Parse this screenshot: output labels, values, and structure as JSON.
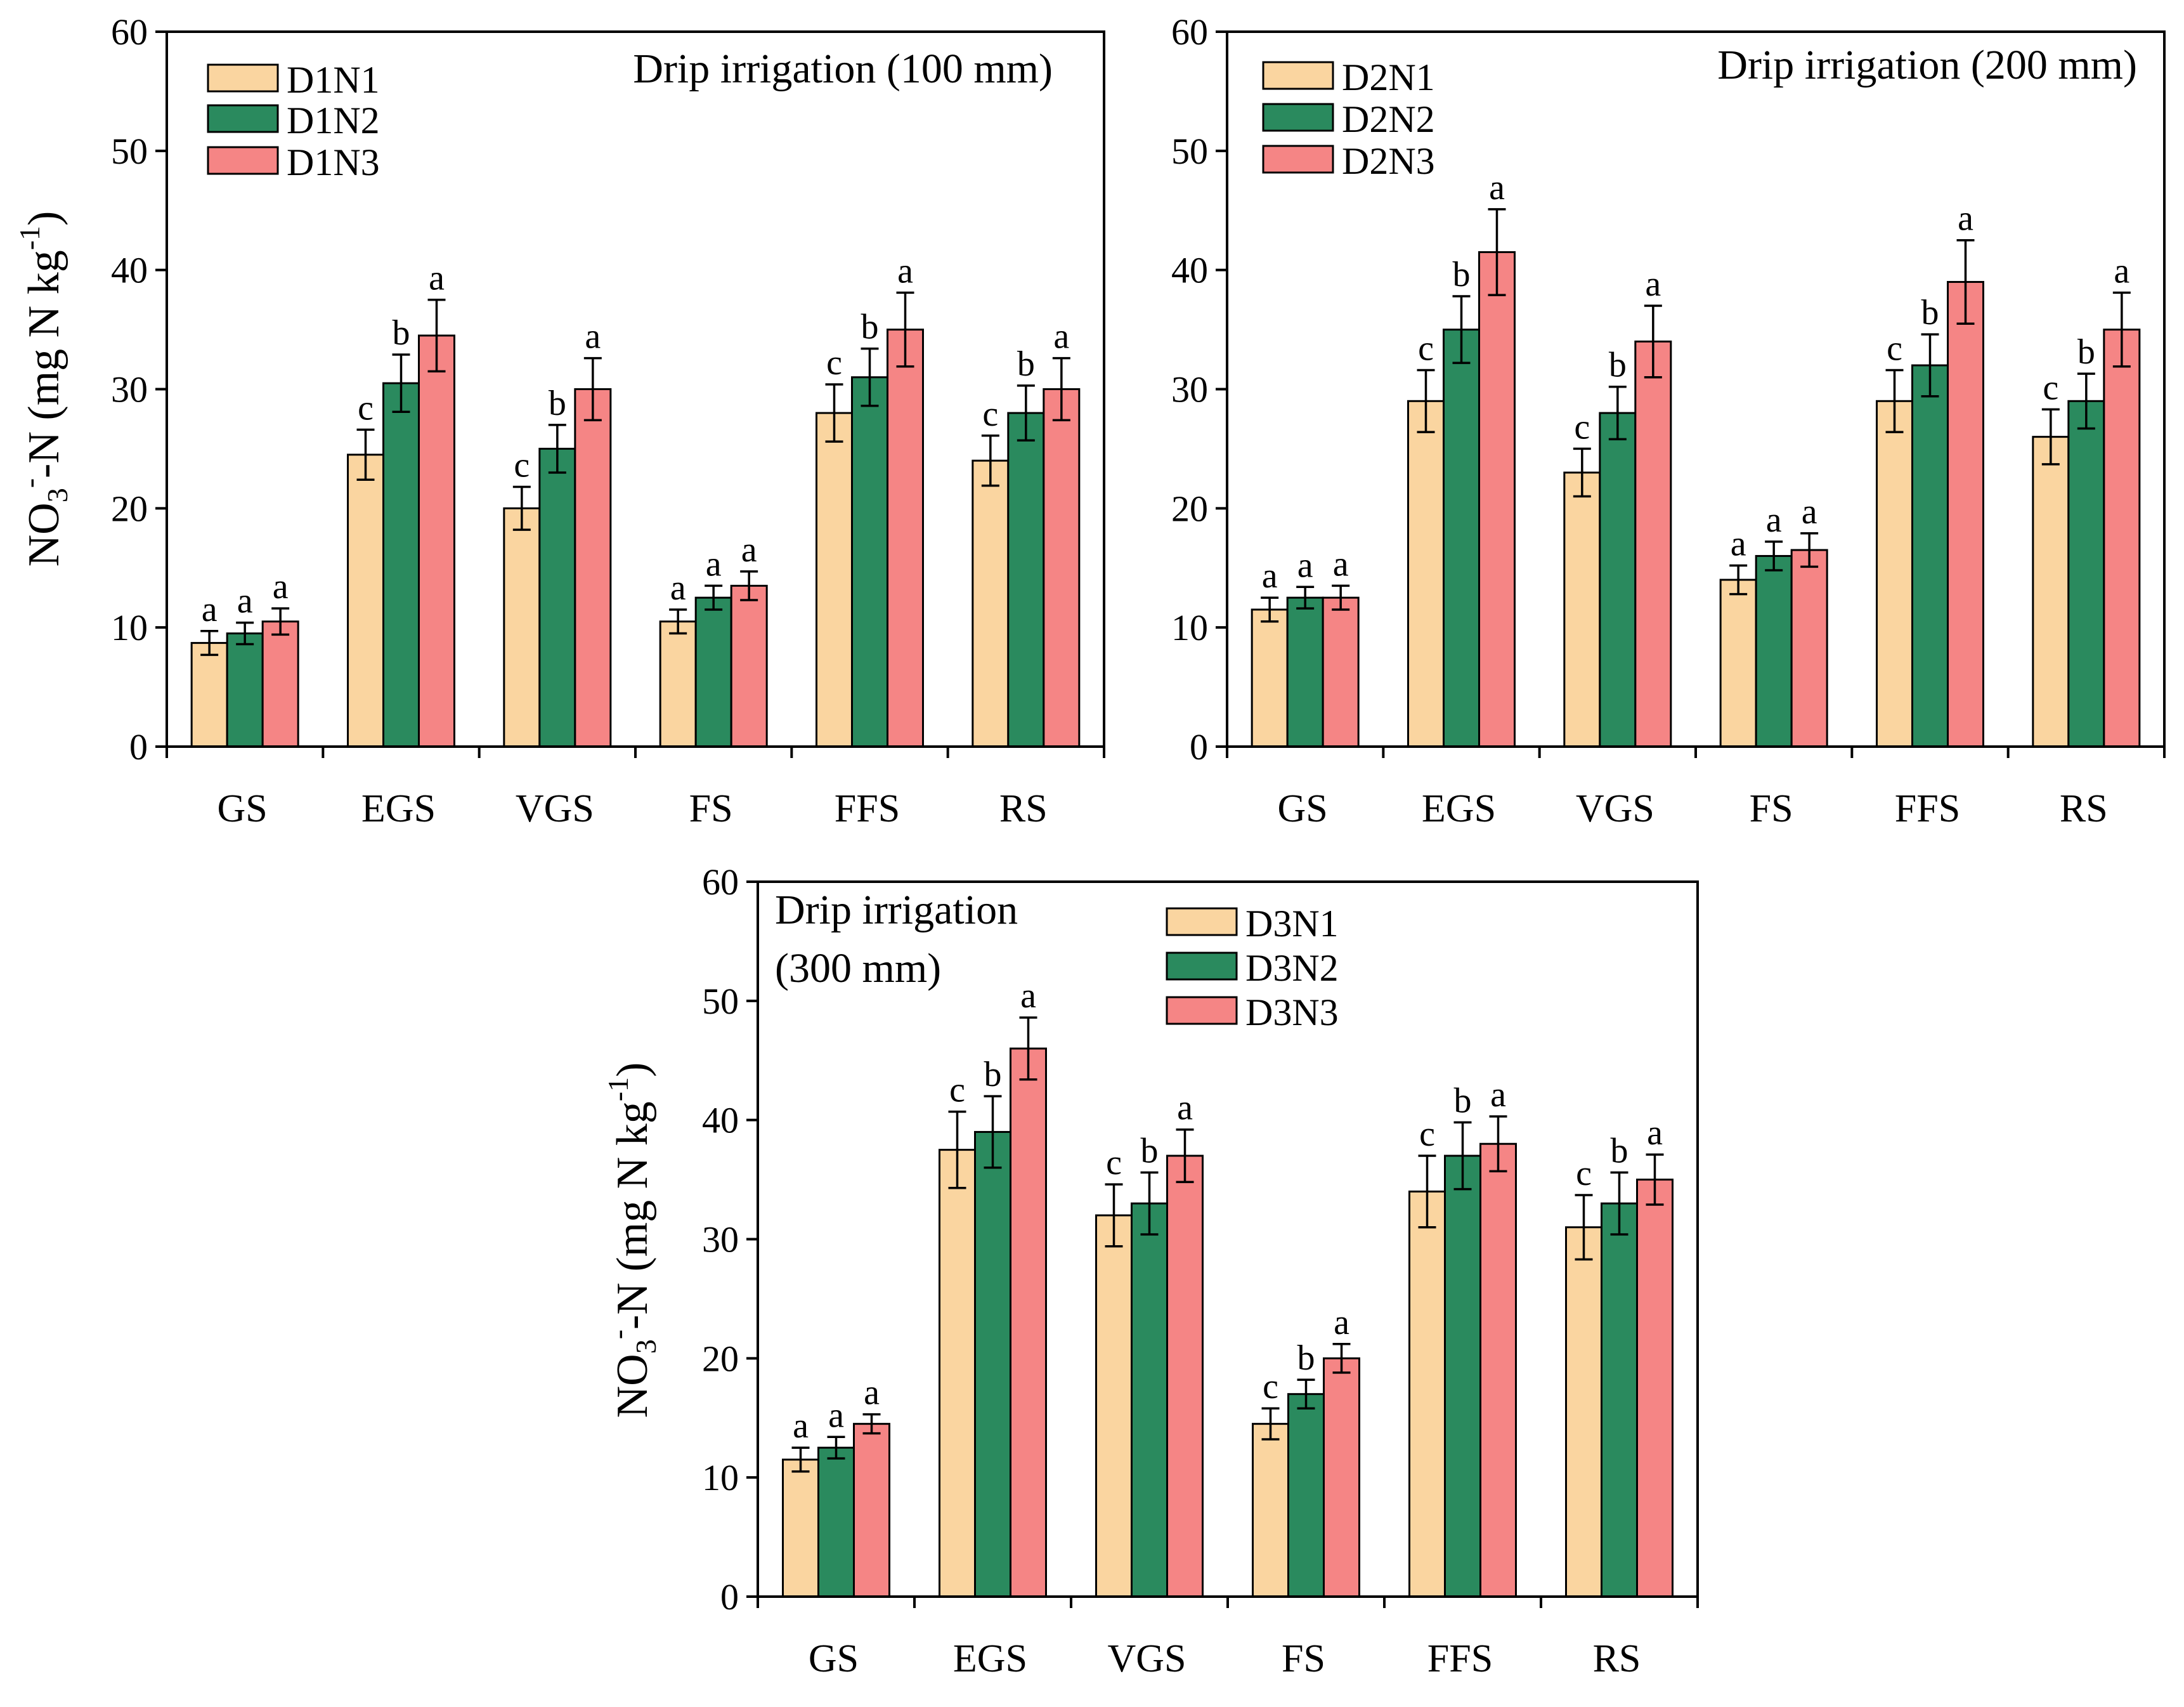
{
  "chart_data": [
    {
      "type": "bar",
      "title": "Drip irrigation (100 mm)",
      "xlabel": "",
      "ylabel_main": "NO",
      "ylabel_sub": "3",
      "ylabel_sup1": "-",
      "ylabel_mid": "-N (mg N kg",
      "ylabel_sup2": "-1",
      "ylabel_end": ")",
      "ylim": [
        0,
        60
      ],
      "yticks": [
        "0",
        "10",
        "20",
        "30",
        "40",
        "50",
        "60"
      ],
      "categories": [
        "GS",
        "EGS",
        "VGS",
        "FS",
        "FFS",
        "RS"
      ],
      "series": [
        {
          "name": "D1N1",
          "color": "#FAD5A0",
          "values": [
            8.7,
            24.5,
            20,
            10.5,
            28,
            24
          ],
          "errors": [
            1.0,
            2.1,
            1.8,
            1.0,
            2.4,
            2.1
          ],
          "letters": [
            "a",
            "c",
            "c",
            "a",
            "c",
            "c"
          ]
        },
        {
          "name": "D1N2",
          "color": "#2A8A5E",
          "values": [
            9.5,
            30.5,
            25,
            12.5,
            31,
            28
          ],
          "errors": [
            0.9,
            2.4,
            2.0,
            1.0,
            2.4,
            2.3
          ],
          "letters": [
            "a",
            "b",
            "b",
            "a",
            "b",
            "b"
          ]
        },
        {
          "name": "D1N3",
          "color": "#F58585",
          "values": [
            10.5,
            34.5,
            30,
            13.5,
            35,
            30
          ],
          "errors": [
            1.1,
            3.0,
            2.6,
            1.2,
            3.1,
            2.6
          ],
          "letters": [
            "a",
            "a",
            "a",
            "a",
            "a",
            "a"
          ]
        }
      ]
    },
    {
      "type": "bar",
      "title": "Drip irrigation (200 mm)",
      "xlabel": "",
      "ylim": [
        0,
        60
      ],
      "yticks": [
        "0",
        "10",
        "20",
        "30",
        "40",
        "50",
        "60"
      ],
      "categories": [
        "GS",
        "EGS",
        "VGS",
        "FS",
        "FFS",
        "RS"
      ],
      "series": [
        {
          "name": "D2N1",
          "color": "#FAD5A0",
          "values": [
            11.5,
            29,
            23,
            14,
            29,
            26
          ],
          "errors": [
            1.0,
            2.6,
            2.0,
            1.2,
            2.6,
            2.3
          ],
          "letters": [
            "a",
            "c",
            "c",
            "a",
            "c",
            "c"
          ]
        },
        {
          "name": "D2N2",
          "color": "#2A8A5E",
          "values": [
            12.5,
            35,
            28,
            16,
            32,
            29
          ],
          "errors": [
            0.9,
            2.8,
            2.2,
            1.2,
            2.6,
            2.3
          ],
          "letters": [
            "a",
            "b",
            "b",
            "a",
            "b",
            "b"
          ]
        },
        {
          "name": "D2N3",
          "color": "#F58585",
          "values": [
            12.5,
            41.5,
            34,
            16.5,
            39,
            35
          ],
          "errors": [
            1.0,
            3.6,
            3.0,
            1.4,
            3.5,
            3.1
          ],
          "letters": [
            "a",
            "a",
            "a",
            "a",
            "a",
            "a"
          ]
        }
      ]
    },
    {
      "type": "bar",
      "title_line1": "Drip irrigation",
      "title_line2": "(300 mm)",
      "xlabel": "",
      "ylim": [
        0,
        60
      ],
      "yticks": [
        "0",
        "10",
        "20",
        "30",
        "40",
        "50",
        "60"
      ],
      "categories": [
        "GS",
        "EGS",
        "VGS",
        "FS",
        "FFS",
        "RS"
      ],
      "series": [
        {
          "name": "D3N1",
          "color": "#FAD5A0",
          "values": [
            11.5,
            37.5,
            32,
            14.5,
            34,
            31
          ],
          "errors": [
            1.0,
            3.2,
            2.6,
            1.3,
            3.0,
            2.7
          ],
          "letters": [
            "a",
            "c",
            "c",
            "c",
            "c",
            "c"
          ]
        },
        {
          "name": "D3N2",
          "color": "#2A8A5E",
          "values": [
            12.5,
            39,
            33,
            17,
            37,
            33
          ],
          "errors": [
            0.9,
            3.0,
            2.6,
            1.2,
            2.8,
            2.6
          ],
          "letters": [
            "a",
            "b",
            "b",
            "b",
            "b",
            "b"
          ]
        },
        {
          "name": "D3N3",
          "color": "#F58585",
          "values": [
            14.5,
            46,
            37,
            20,
            38,
            35
          ],
          "errors": [
            0.8,
            2.6,
            2.2,
            1.2,
            2.3,
            2.1
          ],
          "letters": [
            "a",
            "a",
            "a",
            "a",
            "a",
            "a"
          ]
        }
      ]
    }
  ]
}
